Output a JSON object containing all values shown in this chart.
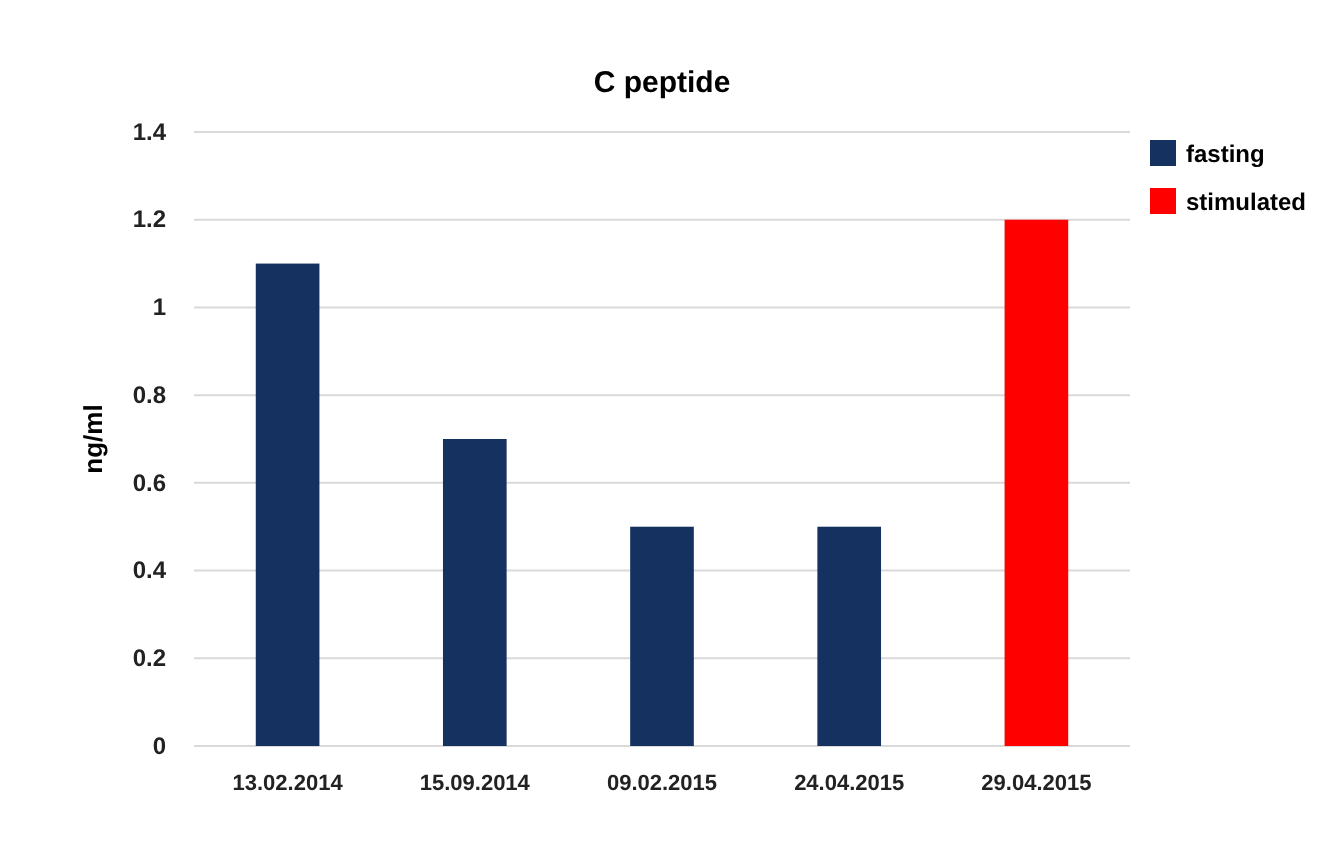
{
  "chart_data": {
    "type": "bar",
    "title": "C peptide",
    "ylabel": "ng/ml",
    "categories": [
      "13.02.2014",
      "15.09.2014",
      "09.02.2015",
      "24.04.2015",
      "29.04.2015"
    ],
    "series": [
      {
        "name": "fasting",
        "color": "#14315f",
        "values": [
          1.1,
          0.7,
          0.5,
          0.5,
          null
        ]
      },
      {
        "name": "stimulated",
        "color": "#ff0000",
        "values": [
          null,
          null,
          null,
          null,
          1.2
        ]
      }
    ],
    "ylim": [
      0,
      1.4
    ],
    "yticks": [
      0,
      {
        "value": 0.2,
        "label": "0.2"
      },
      {
        "value": 0.4,
        "label": "0.4"
      },
      {
        "value": 0.6,
        "label": "0.6"
      },
      {
        "value": 0.8,
        "label": "0.8"
      },
      1,
      {
        "value": 1.2,
        "label": "1.2"
      },
      {
        "value": 1.4,
        "label": "1.4"
      }
    ],
    "grid": "y",
    "legend": "top right"
  }
}
